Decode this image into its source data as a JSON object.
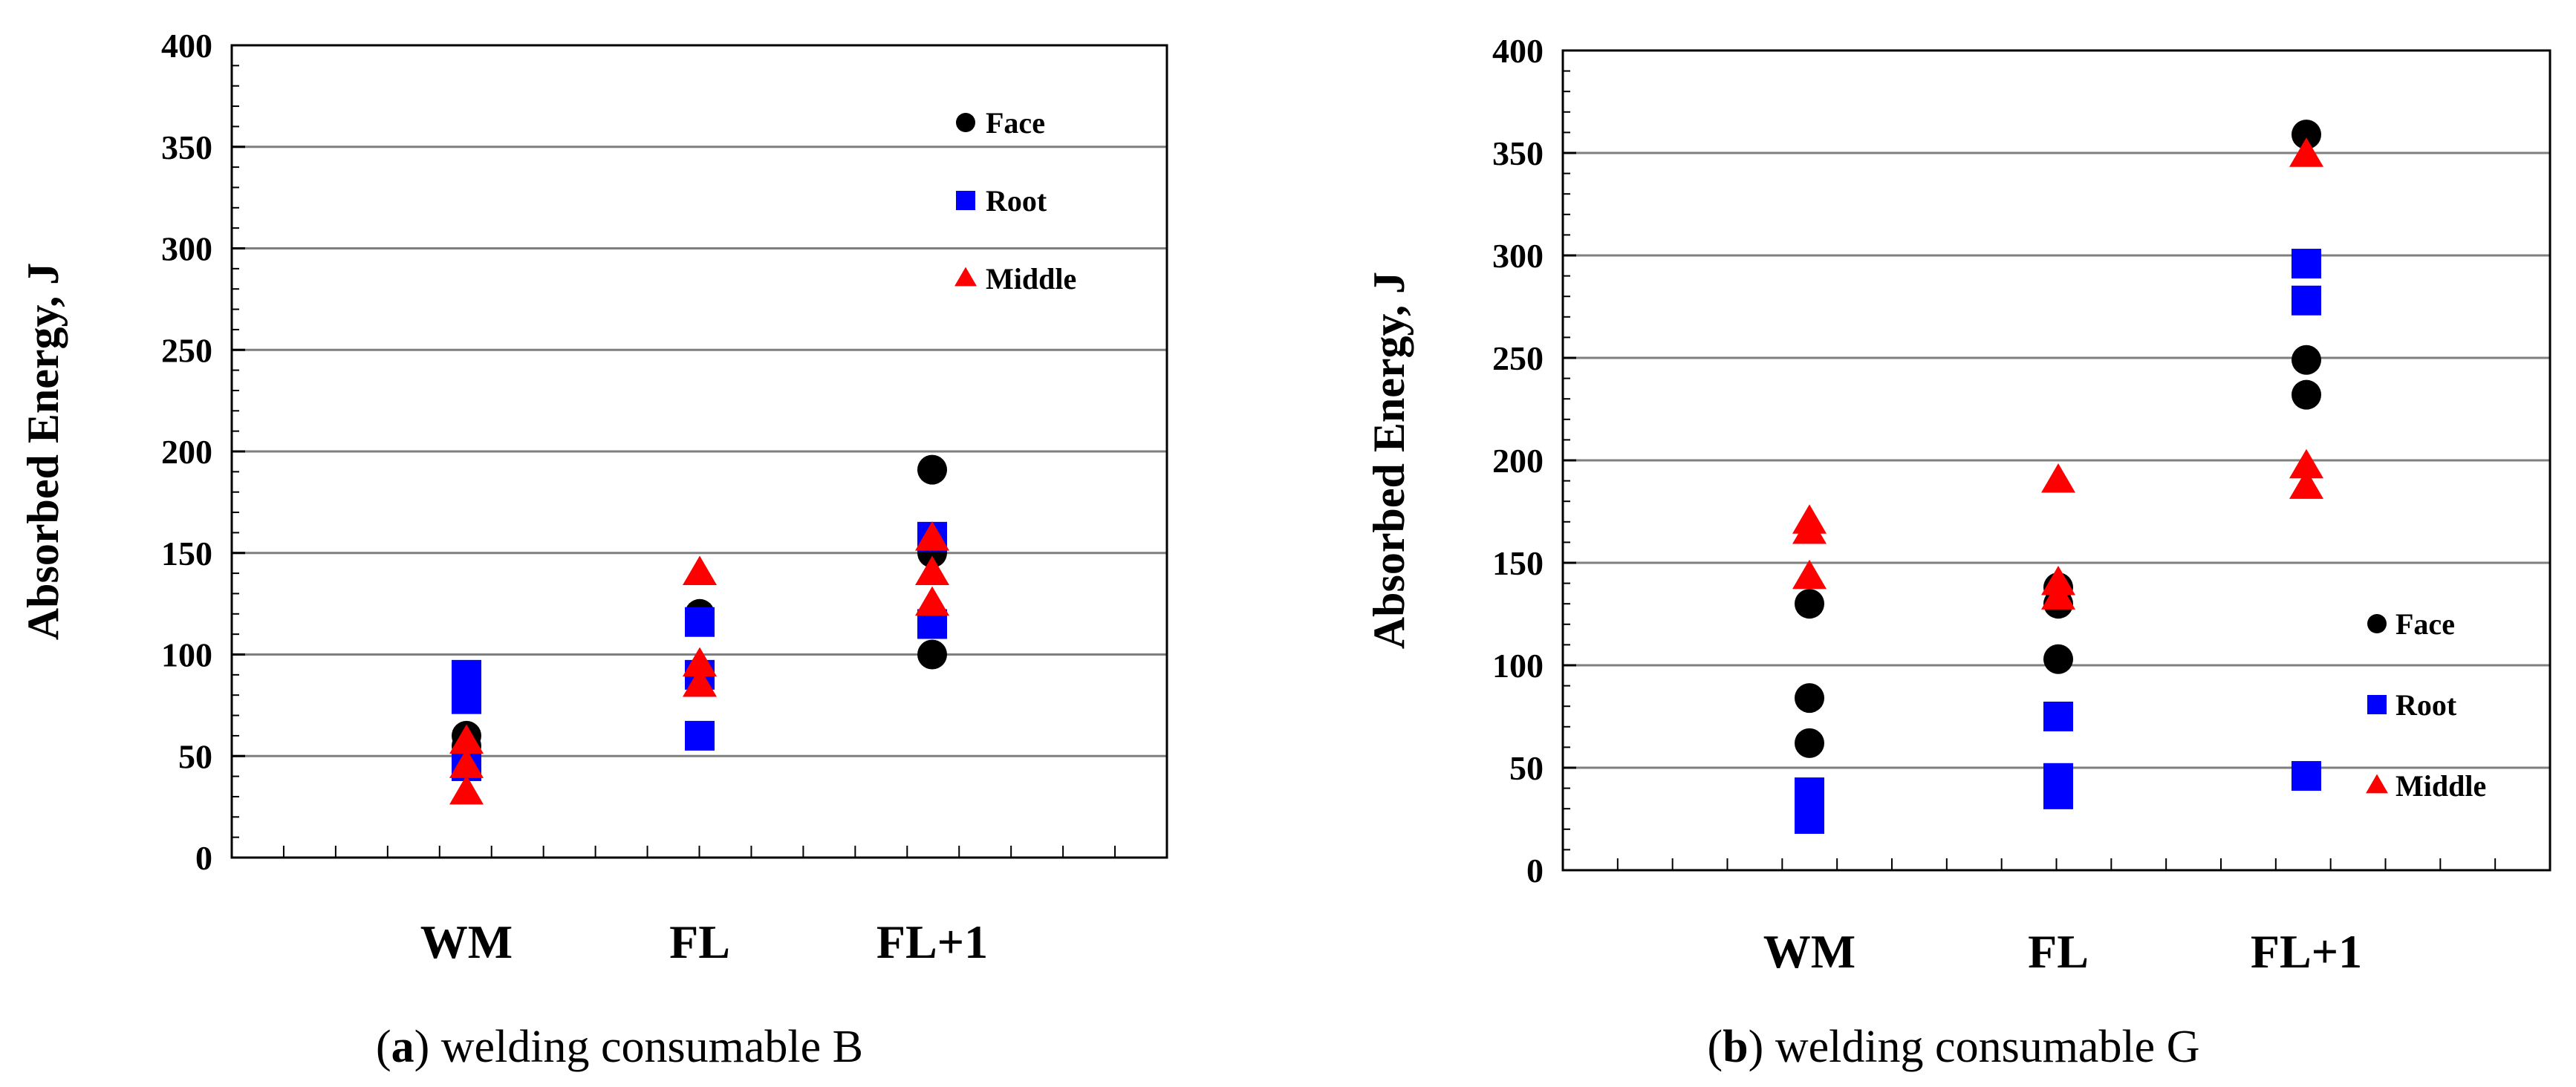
{
  "chart_data": [
    {
      "type": "scatter",
      "title": "",
      "caption_letter": "a",
      "caption_text": "welding consumable B",
      "ylabel": "Absorbed Energy, J",
      "xlabel": "",
      "categories": [
        "WM",
        "FL",
        "FL+1"
      ],
      "ylim": [
        0,
        400
      ],
      "yticks": [
        0,
        50,
        100,
        150,
        200,
        250,
        300,
        350,
        400
      ],
      "grid": true,
      "legend_position": "top-right",
      "series": [
        {
          "name": "Face",
          "marker": "circle",
          "color": "#000000",
          "points": [
            [
              "WM",
              80
            ],
            [
              "WM",
              60
            ],
            [
              "WM",
              55
            ],
            [
              "WM",
              50
            ],
            [
              "FL",
              120
            ],
            [
              "FL",
              90
            ],
            [
              "FL+1",
              191
            ],
            [
              "FL+1",
              150
            ],
            [
              "FL+1",
              100
            ]
          ]
        },
        {
          "name": "Root",
          "marker": "square",
          "color": "#0000ff",
          "points": [
            [
              "WM",
              90
            ],
            [
              "WM",
              78
            ],
            [
              "WM",
              45
            ],
            [
              "FL",
              116
            ],
            [
              "FL",
              90
            ],
            [
              "FL",
              60
            ],
            [
              "FL+1",
              158
            ],
            [
              "FL+1",
              115
            ]
          ]
        },
        {
          "name": "Middle",
          "marker": "triangle",
          "color": "#ff0000",
          "points": [
            [
              "WM",
              57
            ],
            [
              "WM",
              45
            ],
            [
              "WM",
              32
            ],
            [
              "FL",
              140
            ],
            [
              "FL",
              95
            ],
            [
              "FL",
              85
            ],
            [
              "FL+1",
              157
            ],
            [
              "FL+1",
              140
            ],
            [
              "FL+1",
              125
            ]
          ]
        }
      ]
    },
    {
      "type": "scatter",
      "title": "",
      "caption_letter": "b",
      "caption_text": "welding consumable G",
      "ylabel": "Absorbed Energy, J",
      "xlabel": "",
      "categories": [
        "WM",
        "FL",
        "FL+1"
      ],
      "ylim": [
        0,
        400
      ],
      "yticks": [
        0,
        50,
        100,
        150,
        200,
        250,
        300,
        350,
        400
      ],
      "grid": true,
      "legend_position": "bottom-right",
      "series": [
        {
          "name": "Face",
          "marker": "circle",
          "color": "#000000",
          "points": [
            [
              "WM",
              130
            ],
            [
              "WM",
              84
            ],
            [
              "WM",
              62
            ],
            [
              "FL",
              138
            ],
            [
              "FL",
              130
            ],
            [
              "FL",
              103
            ],
            [
              "FL+1",
              359
            ],
            [
              "FL+1",
              249
            ],
            [
              "FL+1",
              232
            ]
          ]
        },
        {
          "name": "Root",
          "marker": "square",
          "color": "#0000ff",
          "points": [
            [
              "WM",
              38
            ],
            [
              "WM",
              32
            ],
            [
              "WM",
              25
            ],
            [
              "FL",
              75
            ],
            [
              "FL",
              45
            ],
            [
              "FL",
              37
            ],
            [
              "FL+1",
              296
            ],
            [
              "FL+1",
              278
            ],
            [
              "FL+1",
              46
            ]
          ]
        },
        {
          "name": "Middle",
          "marker": "triangle",
          "color": "#ff0000",
          "points": [
            [
              "WM",
              170
            ],
            [
              "WM",
              165
            ],
            [
              "WM",
              143
            ],
            [
              "FL",
              190
            ],
            [
              "FL",
              140
            ],
            [
              "FL",
              133
            ],
            [
              "FL+1",
              349
            ],
            [
              "FL+1",
              197
            ],
            [
              "FL+1",
              187
            ]
          ]
        }
      ]
    }
  ]
}
